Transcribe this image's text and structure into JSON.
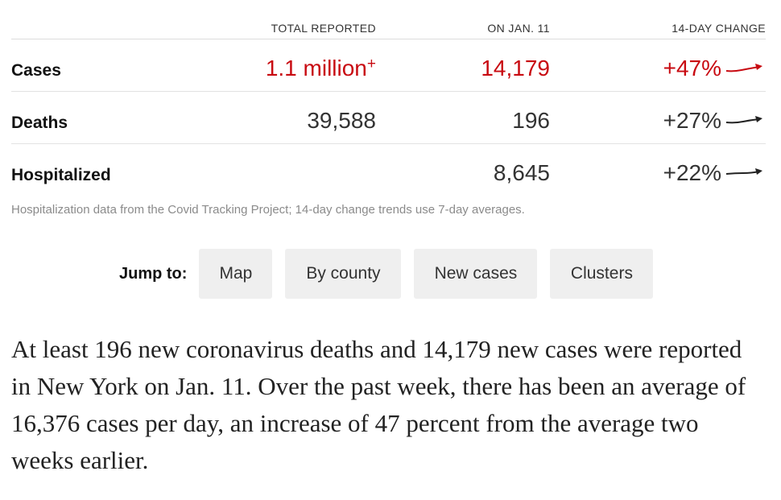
{
  "table": {
    "headers": {
      "total": "TOTAL REPORTED",
      "on_date": "ON JAN. 11",
      "change": "14-DAY CHANGE"
    },
    "rows": [
      {
        "label": "Cases",
        "total": "1.1 million",
        "total_suffix": "+",
        "on_date": "14,179",
        "change": "+47%",
        "trend": "up-red"
      },
      {
        "label": "Deaths",
        "total": "39,588",
        "total_suffix": "",
        "on_date": "196",
        "change": "+27%",
        "trend": "up"
      },
      {
        "label": "Hospitalized",
        "total": "",
        "total_suffix": "",
        "on_date": "8,645",
        "change": "+22%",
        "trend": "up"
      }
    ],
    "note": "Hospitalization data from the Covid Tracking Project; 14-day change trends use 7-day averages."
  },
  "jump": {
    "label": "Jump to:",
    "buttons": [
      "Map",
      "By county",
      "New cases",
      "Clusters"
    ]
  },
  "paragraph": "At least 196 new coronavirus deaths and 14,179 new cases were reported in New York on Jan. 11. Over the past week, there has been an average of 16,376 cases per day, an increase of 47 percent from the average two weeks earlier.",
  "colors": {
    "accent_red": "#c80a11",
    "text_dark": "#121212",
    "button_bg": "#efefef",
    "note_gray": "#8b8b8b"
  }
}
